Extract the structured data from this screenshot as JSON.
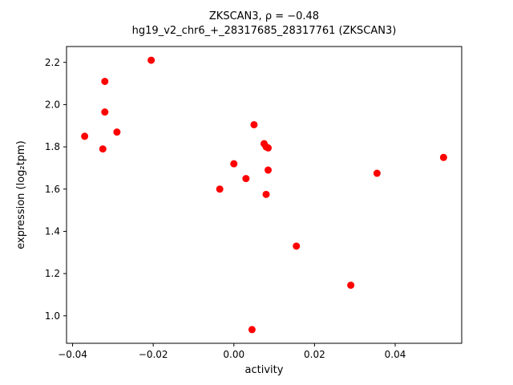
{
  "figure": {
    "title": "ZKSCAN3, ρ = −0.48",
    "subtitle": "hg19_v2_chr6_+_28317685_28317761 (ZKSCAN3)"
  },
  "chart_data": {
    "type": "scatter",
    "title": "ZKSCAN3, ρ = −0.48",
    "subtitle": "hg19_v2_chr6_+_28317685_28317761 (ZKSCAN3)",
    "gene": "ZKSCAN3",
    "rho": -0.48,
    "xlabel": "activity",
    "ylabel": "expression (log₂tpm)",
    "xlim": [
      -0.0415,
      0.0565
    ],
    "ylim": [
      0.87,
      2.275
    ],
    "grid": false,
    "legend": "none",
    "marker_color": "#ff0000",
    "marker_radius": 4.5,
    "xticks": {
      "values": [
        -0.04,
        -0.02,
        0.0,
        0.02,
        0.04
      ],
      "labels": [
        "−0.04",
        "−0.02",
        "0.00",
        "0.02",
        "0.04"
      ]
    },
    "yticks": {
      "values": [
        1.0,
        1.2,
        1.4,
        1.6,
        1.8,
        2.0,
        2.2
      ],
      "labels": [
        "1.0",
        "1.2",
        "1.4",
        "1.6",
        "1.8",
        "2.0",
        "2.2"
      ]
    },
    "points": [
      [
        -0.037,
        1.85
      ],
      [
        -0.032,
        2.11
      ],
      [
        -0.032,
        1.965
      ],
      [
        -0.0325,
        1.79
      ],
      [
        -0.029,
        1.87
      ],
      [
        -0.0205,
        2.21
      ],
      [
        -0.0035,
        1.6
      ],
      [
        0.0,
        1.72
      ],
      [
        0.003,
        1.65
      ],
      [
        0.005,
        1.905
      ],
      [
        0.0075,
        1.815
      ],
      [
        0.008,
        1.8
      ],
      [
        0.0085,
        1.795
      ],
      [
        0.0085,
        1.69
      ],
      [
        0.008,
        1.575
      ],
      [
        0.0045,
        0.935
      ],
      [
        0.0155,
        1.33
      ],
      [
        0.029,
        1.145
      ],
      [
        0.0355,
        1.675
      ],
      [
        0.052,
        1.75
      ]
    ]
  }
}
